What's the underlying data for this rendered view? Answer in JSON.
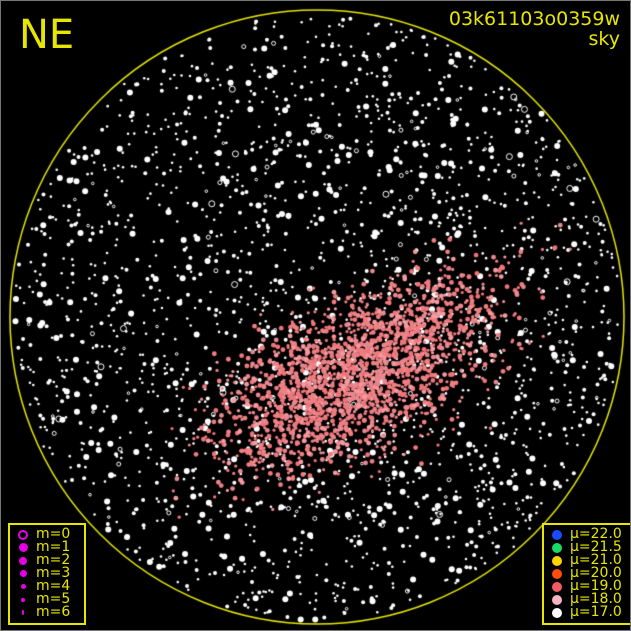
{
  "header": {
    "direction": "NE",
    "frame_id": "03k61103o0359w",
    "frame_type": "sky"
  },
  "colors": {
    "frame": "#e6e600",
    "background": "#000000",
    "magnitude_marker": "#e600e6"
  },
  "magnitude_legend": [
    {
      "label": "m=0",
      "style": "ring"
    },
    {
      "label": "m=1"
    },
    {
      "label": "m=2"
    },
    {
      "label": "m=3"
    },
    {
      "label": "m=4"
    },
    {
      "label": "m=5"
    },
    {
      "label": "m=6"
    }
  ],
  "brightness_legend": [
    {
      "label": "μ=22.0",
      "color": "#1a4cff"
    },
    {
      "label": "μ=21.5",
      "color": "#1ad966"
    },
    {
      "label": "μ=21.0",
      "color": "#ffd200"
    },
    {
      "label": "μ=20.0",
      "color": "#ff4d0d"
    },
    {
      "label": "μ=19.0",
      "color": "#f25a66"
    },
    {
      "label": "μ=18.0",
      "color": "#f7b3bf"
    },
    {
      "label": "μ=17.0",
      "color": "#ffffff"
    }
  ]
}
